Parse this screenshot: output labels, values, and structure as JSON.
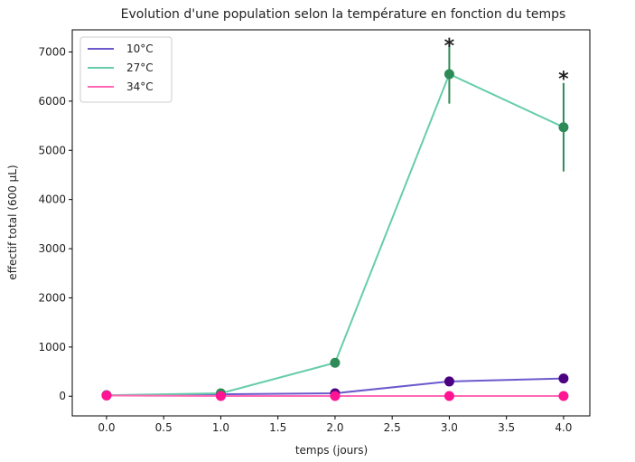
{
  "chart_data": {
    "type": "line",
    "title": "Evolution d'une population selon la température en fonction du temps",
    "xlabel": "temps (jours)",
    "ylabel": "effectif total (600 µL)",
    "xlim": [
      -0.3,
      4.23
    ],
    "ylim": [
      -400,
      7450
    ],
    "xticks": [
      0.0,
      0.5,
      1.0,
      1.5,
      2.0,
      2.5,
      3.0,
      3.5,
      4.0
    ],
    "xtick_labels": [
      "0.0",
      "0.5",
      "1.0",
      "1.5",
      "2.0",
      "2.5",
      "3.0",
      "3.5",
      "4.0"
    ],
    "yticks": [
      0,
      1000,
      2000,
      3000,
      4000,
      5000,
      6000,
      7000
    ],
    "ytick_labels": [
      "0",
      "1000",
      "2000",
      "3000",
      "4000",
      "5000",
      "6000",
      "7000"
    ],
    "grid": false,
    "legend_position": "top-left",
    "x": [
      0,
      1,
      2,
      3,
      4
    ],
    "series": [
      {
        "name": "10°C",
        "values": [
          20,
          40,
          60,
          300,
          360
        ],
        "line_color": "#6a5acd",
        "marker_color": "#4b0082",
        "errors": [
          0,
          0,
          0,
          0,
          0
        ]
      },
      {
        "name": "27°C",
        "values": [
          20,
          60,
          680,
          6550,
          5470
        ],
        "line_color": "#66cdaa",
        "marker_color": "#2e8b57",
        "errors": [
          0,
          0,
          0,
          600,
          900
        ]
      },
      {
        "name": "34°C",
        "values": [
          15,
          5,
          5,
          5,
          5
        ],
        "line_color": "#ff69b4",
        "marker_color": "#ff1493",
        "errors": [
          0,
          0,
          0,
          0,
          0
        ]
      }
    ],
    "annotations": [
      {
        "text": "*",
        "x": 3,
        "y": 7250
      },
      {
        "text": "*",
        "x": 4,
        "y": 6580
      }
    ]
  }
}
